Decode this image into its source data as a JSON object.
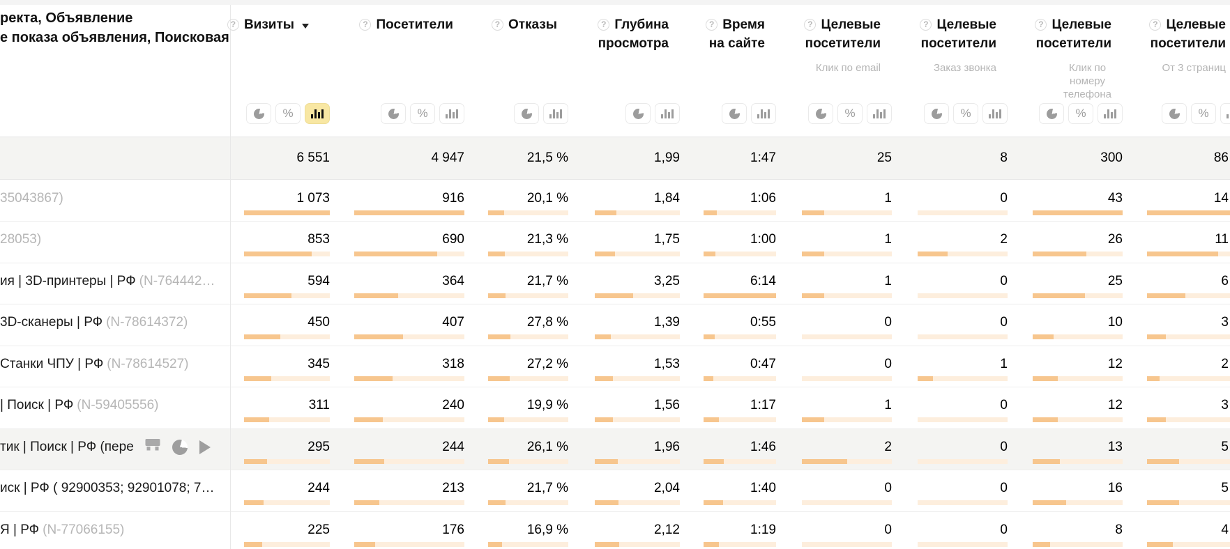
{
  "table": {
    "dimension_header": {
      "line1": "ректа, Объявление",
      "line2": "е показа объявления, Поисковая"
    },
    "columns": [
      {
        "id": "visits",
        "title_lines": [
          "Визиты"
        ],
        "subtitle_lines": [],
        "help": true,
        "sort": "desc",
        "toggles": [
          "pie",
          "percent",
          "bar"
        ],
        "selected_toggle": "bar"
      },
      {
        "id": "visitors",
        "title_lines": [
          "Посетители"
        ],
        "subtitle_lines": [],
        "help": true,
        "sort": null,
        "toggles": [
          "pie",
          "percent",
          "bar"
        ],
        "selected_toggle": null
      },
      {
        "id": "bounce-rate",
        "title_lines": [
          "Отказы"
        ],
        "subtitle_lines": [],
        "help": true,
        "sort": null,
        "toggles": [
          "pie",
          "bar"
        ],
        "selected_toggle": null
      },
      {
        "id": "page-depth",
        "title_lines": [
          "Глубина",
          "просмотра"
        ],
        "subtitle_lines": [],
        "help": true,
        "sort": null,
        "toggles": [
          "pie",
          "bar"
        ],
        "selected_toggle": null
      },
      {
        "id": "time-on-site",
        "title_lines": [
          "Время",
          "на сайте"
        ],
        "subtitle_lines": [],
        "help": true,
        "sort": null,
        "toggles": [
          "pie",
          "bar"
        ],
        "selected_toggle": null
      },
      {
        "id": "goal-email-click",
        "title_lines": [
          "Целевые",
          "посетители"
        ],
        "subtitle_lines": [
          "Клик по email"
        ],
        "help": true,
        "sort": null,
        "toggles": [
          "pie",
          "percent",
          "bar"
        ],
        "selected_toggle": null
      },
      {
        "id": "goal-call-order",
        "title_lines": [
          "Целевые",
          "посетители"
        ],
        "subtitle_lines": [
          "Заказ звонка"
        ],
        "help": true,
        "sort": null,
        "toggles": [
          "pie",
          "percent",
          "bar"
        ],
        "selected_toggle": null
      },
      {
        "id": "goal-phone-click",
        "title_lines": [
          "Целевые",
          "посетители"
        ],
        "subtitle_lines": [
          "Клик по",
          "номеру",
          "телефона"
        ],
        "help": true,
        "sort": null,
        "toggles": [
          "pie",
          "percent",
          "bar"
        ],
        "selected_toggle": null
      },
      {
        "id": "goal-3pages",
        "title_lines": [
          "Целевые",
          "посетители"
        ],
        "subtitle_lines": [
          "От 3 страниц"
        ],
        "help": true,
        "sort": null,
        "toggles": [
          "pie",
          "percent",
          "bar"
        ],
        "selected_toggle": null
      }
    ],
    "summary_row": {
      "values": [
        "6 551",
        "4 947",
        "21,5 %",
        "1,99",
        "1:47",
        "25",
        "8",
        "300",
        "86"
      ]
    },
    "rows": [
      {
        "label_main": "",
        "label_note": "35043867)",
        "highlighted": false,
        "action_icons": [],
        "cells": [
          {
            "v": "1 073",
            "bar": 100
          },
          {
            "v": "916",
            "bar": 100
          },
          {
            "v": "20,1 %",
            "bar": 20
          },
          {
            "v": "1,84",
            "bar": 25
          },
          {
            "v": "1:06",
            "bar": 18
          },
          {
            "v": "1",
            "bar": 25
          },
          {
            "v": "0",
            "bar": 0
          },
          {
            "v": "43",
            "bar": 100
          },
          {
            "v": "14",
            "bar": 100
          }
        ]
      },
      {
        "label_main": "",
        "label_note": "28053)",
        "highlighted": false,
        "action_icons": [],
        "cells": [
          {
            "v": "853",
            "bar": 79
          },
          {
            "v": "690",
            "bar": 75
          },
          {
            "v": "21,3 %",
            "bar": 21
          },
          {
            "v": "1,75",
            "bar": 24
          },
          {
            "v": "1:00",
            "bar": 16
          },
          {
            "v": "1",
            "bar": 25
          },
          {
            "v": "2",
            "bar": 33
          },
          {
            "v": "26",
            "bar": 60
          },
          {
            "v": "11",
            "bar": 79
          }
        ]
      },
      {
        "label_main": "ия | 3D-принтеры | РФ",
        "label_note": "(N-764442…",
        "highlighted": false,
        "action_icons": [],
        "cells": [
          {
            "v": "594",
            "bar": 55
          },
          {
            "v": "364",
            "bar": 40
          },
          {
            "v": "21,7 %",
            "bar": 22
          },
          {
            "v": "3,25",
            "bar": 45
          },
          {
            "v": "6:14",
            "bar": 100
          },
          {
            "v": "1",
            "bar": 25
          },
          {
            "v": "0",
            "bar": 0
          },
          {
            "v": "25",
            "bar": 58
          },
          {
            "v": "6",
            "bar": 43
          }
        ]
      },
      {
        "label_main": "3D-сканеры | РФ",
        "label_note": "(N-78614372)",
        "highlighted": false,
        "action_icons": [],
        "cells": [
          {
            "v": "450",
            "bar": 42
          },
          {
            "v": "407",
            "bar": 44
          },
          {
            "v": "27,8 %",
            "bar": 28
          },
          {
            "v": "1,39",
            "bar": 19
          },
          {
            "v": "0:55",
            "bar": 15
          },
          {
            "v": "0",
            "bar": 0
          },
          {
            "v": "0",
            "bar": 0
          },
          {
            "v": "10",
            "bar": 23
          },
          {
            "v": "3",
            "bar": 21
          }
        ]
      },
      {
        "label_main": "Станки ЧПУ | РФ",
        "label_note": "(N-78614527)",
        "highlighted": false,
        "action_icons": [],
        "cells": [
          {
            "v": "345",
            "bar": 32
          },
          {
            "v": "318",
            "bar": 35
          },
          {
            "v": "27,2 %",
            "bar": 27
          },
          {
            "v": "1,53",
            "bar": 21
          },
          {
            "v": "0:47",
            "bar": 13
          },
          {
            "v": "0",
            "bar": 0
          },
          {
            "v": "1",
            "bar": 17
          },
          {
            "v": "12",
            "bar": 28
          },
          {
            "v": "2",
            "bar": 14
          }
        ]
      },
      {
        "label_main": "| Поиск | РФ",
        "label_note": "(N-59405556)",
        "highlighted": false,
        "action_icons": [],
        "cells": [
          {
            "v": "311",
            "bar": 29
          },
          {
            "v": "240",
            "bar": 26
          },
          {
            "v": "19,9 %",
            "bar": 20
          },
          {
            "v": "1,56",
            "bar": 21
          },
          {
            "v": "1:17",
            "bar": 21
          },
          {
            "v": "1",
            "bar": 25
          },
          {
            "v": "0",
            "bar": 0
          },
          {
            "v": "12",
            "bar": 28
          },
          {
            "v": "3",
            "bar": 21
          }
        ]
      },
      {
        "label_main": "тик | Поиск | РФ (пере",
        "label_note": "",
        "highlighted": true,
        "action_icons": [
          "segment",
          "pie-chart",
          "play"
        ],
        "cells": [
          {
            "v": "295",
            "bar": 27
          },
          {
            "v": "244",
            "bar": 27
          },
          {
            "v": "26,1 %",
            "bar": 26
          },
          {
            "v": "1,96",
            "bar": 27
          },
          {
            "v": "1:46",
            "bar": 28
          },
          {
            "v": "2",
            "bar": 50
          },
          {
            "v": "0",
            "bar": 0
          },
          {
            "v": "13",
            "bar": 30
          },
          {
            "v": "5",
            "bar": 36
          }
        ]
      },
      {
        "label_main": "иск | РФ ( 92900353; 92901078; 7…",
        "label_note": "",
        "highlighted": false,
        "action_icons": [],
        "cells": [
          {
            "v": "244",
            "bar": 23
          },
          {
            "v": "213",
            "bar": 23
          },
          {
            "v": "21,7 %",
            "bar": 22
          },
          {
            "v": "2,04",
            "bar": 28
          },
          {
            "v": "1:40",
            "bar": 27
          },
          {
            "v": "0",
            "bar": 0
          },
          {
            "v": "0",
            "bar": 0
          },
          {
            "v": "16",
            "bar": 37
          },
          {
            "v": "5",
            "bar": 36
          }
        ]
      },
      {
        "label_main": "Я | РФ",
        "label_note": "(N-77066155)",
        "highlighted": false,
        "action_icons": [],
        "cells": [
          {
            "v": "225",
            "bar": 21
          },
          {
            "v": "176",
            "bar": 19
          },
          {
            "v": "16,9 %",
            "bar": 17
          },
          {
            "v": "2,12",
            "bar": 29
          },
          {
            "v": "1:19",
            "bar": 21
          },
          {
            "v": "0",
            "bar": 0
          },
          {
            "v": "0",
            "bar": 0
          },
          {
            "v": "8",
            "bar": 19
          },
          {
            "v": "4",
            "bar": 29
          }
        ]
      }
    ]
  },
  "colors": {
    "bar_fill": "#f7c68e",
    "bar_track": "#fdeedd",
    "selected_toggle_bg": "#f8e7a3",
    "summary_row_bg": "#f4f4f2",
    "highlighted_row_bg": "#f4f4f2"
  }
}
